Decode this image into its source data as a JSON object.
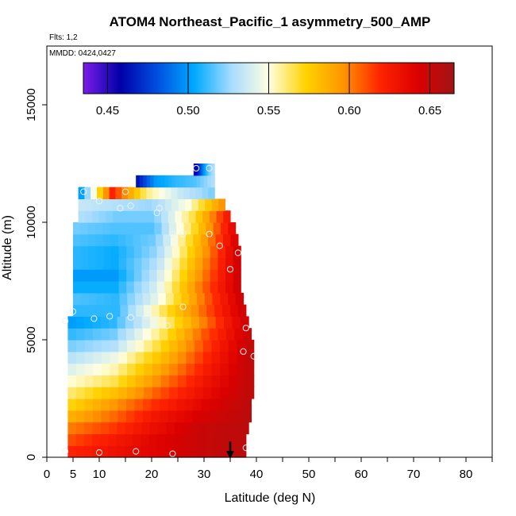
{
  "title": "ATOM4 Northeast_Pacific_1 asymmetry_500_AMP",
  "flights_note": "Flts: 1,2",
  "mmdd_note": "MMDD: 0424,0427",
  "chart_data": {
    "type": "heatmap",
    "title": "ATOM4 Northeast_Pacific_1 asymmetry_500_AMP",
    "xlabel": "Latitude (deg N)",
    "ylabel": "Altitude (m)",
    "xlim": [
      0,
      85
    ],
    "ylim": [
      0,
      17500
    ],
    "x_ticks": [
      "0",
      "5",
      "10",
      "20",
      "30",
      "40",
      "50",
      "60",
      "70",
      "80"
    ],
    "y_ticks": [
      "0",
      "5000",
      "10000",
      "15000"
    ],
    "colorbar": {
      "min": 0.435,
      "max": 0.665,
      "ticks": [
        "0.45",
        "0.50",
        "0.55",
        "0.60",
        "0.65"
      ],
      "colors": [
        "#7a1de8",
        "#0000a8",
        "#0050e0",
        "#00aaff",
        "#a8dcff",
        "#ffffe0",
        "#ffd200",
        "#ff9600",
        "#ff2400",
        "#dc0000",
        "#a01414"
      ]
    },
    "rows": [
      {
        "alt": 250,
        "lat": [
          4,
          38
        ],
        "vals": [
          0.62,
          0.63,
          0.64,
          0.65,
          0.655
        ]
      },
      {
        "alt": 750,
        "lat": [
          4,
          38
        ],
        "vals": [
          0.61,
          0.625,
          0.64,
          0.65,
          0.655
        ]
      },
      {
        "alt": 1250,
        "lat": [
          4,
          38.5
        ],
        "vals": [
          0.6,
          0.615,
          0.635,
          0.65,
          0.655
        ]
      },
      {
        "alt": 1750,
        "lat": [
          4,
          39
        ],
        "vals": [
          0.585,
          0.605,
          0.63,
          0.645,
          0.655
        ]
      },
      {
        "alt": 2250,
        "lat": [
          4,
          39
        ],
        "vals": [
          0.57,
          0.595,
          0.62,
          0.64,
          0.655
        ]
      },
      {
        "alt": 2750,
        "lat": [
          4,
          39.5
        ],
        "vals": [
          0.56,
          0.58,
          0.61,
          0.635,
          0.655
        ]
      },
      {
        "alt": 3250,
        "lat": [
          4,
          39.5
        ],
        "vals": [
          0.55,
          0.565,
          0.6,
          0.63,
          0.655
        ]
      },
      {
        "alt": 3750,
        "lat": [
          4,
          39.5
        ],
        "vals": [
          0.54,
          0.555,
          0.59,
          0.625,
          0.655
        ]
      },
      {
        "alt": 4250,
        "lat": [
          4,
          39.5
        ],
        "vals": [
          0.53,
          0.545,
          0.58,
          0.62,
          0.655
        ]
      },
      {
        "alt": 4750,
        "lat": [
          4,
          39.5
        ],
        "vals": [
          0.52,
          0.53,
          0.57,
          0.615,
          0.655
        ]
      },
      {
        "alt": 5250,
        "lat": [
          4,
          39
        ],
        "vals": [
          0.51,
          0.52,
          0.56,
          0.61,
          0.65
        ]
      },
      {
        "alt": 5750,
        "lat": [
          4,
          38.5
        ],
        "vals": [
          0.5,
          0.51,
          0.55,
          0.6,
          0.65
        ]
      },
      {
        "alt": 6250,
        "lat": [
          5,
          38
        ],
        "vals": [
          0.51,
          0.51,
          0.56,
          0.605,
          0.65
        ]
      },
      {
        "alt": 6750,
        "lat": [
          5,
          37.5
        ],
        "vals": [
          0.515,
          0.51,
          0.545,
          0.6,
          0.65
        ]
      },
      {
        "alt": 7250,
        "lat": [
          5,
          37
        ],
        "vals": [
          0.505,
          0.505,
          0.54,
          0.6,
          0.65
        ]
      },
      {
        "alt": 7750,
        "lat": [
          5,
          37
        ],
        "vals": [
          0.5,
          0.5,
          0.535,
          0.595,
          0.65
        ]
      },
      {
        "alt": 8250,
        "lat": [
          5,
          37
        ],
        "vals": [
          0.51,
          0.505,
          0.53,
          0.59,
          0.65
        ]
      },
      {
        "alt": 8750,
        "lat": [
          5,
          37
        ],
        "vals": [
          0.51,
          0.505,
          0.525,
          0.585,
          0.65
        ]
      },
      {
        "alt": 9250,
        "lat": [
          5,
          36.5
        ],
        "vals": [
          0.515,
          0.51,
          0.52,
          0.58,
          0.645
        ]
      },
      {
        "alt": 9750,
        "lat": [
          5,
          36
        ],
        "vals": [
          0.52,
          0.515,
          0.515,
          0.57,
          0.64
        ]
      },
      {
        "alt": 10250,
        "lat": [
          6,
          35
        ],
        "vals": [
          0.53,
          0.52,
          0.52,
          0.565,
          0.63
        ]
      },
      {
        "alt": 10750,
        "lat": [
          6,
          34
        ],
        "vals": [
          0.535,
          0.53,
          0.525,
          0.55,
          0.6
        ]
      },
      {
        "alt": 11250,
        "lat": [
          6,
          32
        ],
        "vals": [
          0.49,
          0.62,
          0.56,
          0.535,
          0.52
        ]
      },
      {
        "alt": 11750,
        "lat": [
          17,
          32
        ],
        "vals": [
          0.46,
          0.5,
          0.51,
          0.515,
          0.53
        ]
      },
      {
        "alt": 12250,
        "lat": [
          28,
          32
        ],
        "vals": [
          0.45,
          0.47,
          0.5,
          0.52,
          0.53
        ]
      }
    ],
    "points": [
      [
        3.5,
        250
      ],
      [
        10,
        200
      ],
      [
        17,
        250
      ],
      [
        24,
        150
      ],
      [
        38,
        400
      ],
      [
        39.5,
        4300
      ],
      [
        37.5,
        4500
      ],
      [
        38,
        5500
      ],
      [
        3.5,
        5800
      ],
      [
        5,
        6200
      ],
      [
        9,
        5900
      ],
      [
        12,
        6000
      ],
      [
        16,
        5950
      ],
      [
        19,
        6000
      ],
      [
        23,
        5600
      ],
      [
        26,
        6400
      ],
      [
        35,
        8000
      ],
      [
        36.5,
        8700
      ],
      [
        33,
        9000
      ],
      [
        24,
        9500
      ],
      [
        26,
        9500
      ],
      [
        31,
        9500
      ],
      [
        21,
        10400
      ],
      [
        21.5,
        10600
      ],
      [
        14,
        10600
      ],
      [
        16,
        10700
      ],
      [
        10,
        10900
      ],
      [
        7,
        11300
      ],
      [
        15,
        11300
      ],
      [
        28.5,
        12300
      ],
      [
        31,
        12300
      ]
    ],
    "marker_lat": 35
  }
}
